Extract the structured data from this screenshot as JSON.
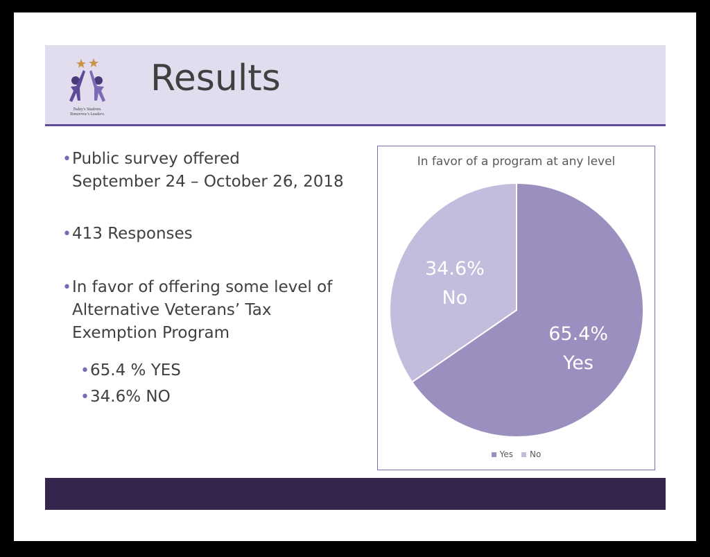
{
  "header": {
    "title": "Results",
    "logo_tagline_1": "Today's Students.",
    "logo_tagline_2": "Tomorrow's Leaders."
  },
  "bullets": {
    "b1_line1": "Public survey offered",
    "b1_line2": "September 24 – October 26, 2018",
    "b2": "413 Responses",
    "b3_line1": "In favor of offering some level of",
    "b3_line2": "Alternative Veterans’ Tax",
    "b3_line3": "Exemption Program",
    "b4": "65.4 % YES",
    "b5": "34.6% NO"
  },
  "colors": {
    "header_bg": "#e1dcee",
    "accent": "#5e4b98",
    "footer_bg": "#35264f",
    "yes": "#9a8fbf",
    "no": "#c4bcdc"
  },
  "chart_data": {
    "type": "pie",
    "title": "In favor of a program at any level",
    "categories": [
      "Yes",
      "No"
    ],
    "values": [
      65.4,
      34.6
    ],
    "data_labels": [
      {
        "pct": "65.4%",
        "name": "Yes"
      },
      {
        "pct": "34.6%",
        "name": "No"
      }
    ],
    "colors": [
      "#9a8fbf",
      "#c4bcdc"
    ],
    "legend_position": "bottom"
  }
}
